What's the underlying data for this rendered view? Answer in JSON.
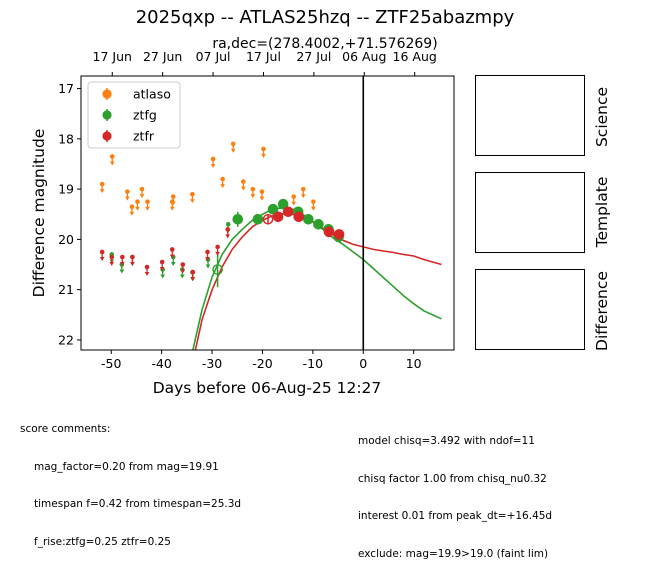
{
  "title": "2025qxp -- ATLAS25hzq -- ZTF25abazmpy",
  "chart_data": {
    "type": "scatter",
    "subtitle": "ra,dec=(278.4002,+71.576269)",
    "xlabel": "Days before 06-Aug-25 12:27",
    "ylabel": "Difference magnitude",
    "xlim": [
      -56,
      18
    ],
    "ylim": [
      22.2,
      16.75
    ],
    "y_inverted": true,
    "xticks": [
      -50,
      -40,
      -30,
      -20,
      -10,
      0,
      10
    ],
    "yticks": [
      17,
      18,
      19,
      20,
      21,
      22
    ],
    "top_axis": [
      {
        "x": -49.8,
        "label": "17 Jun"
      },
      {
        "x": -39.8,
        "label": "27 Jun"
      },
      {
        "x": -29.8,
        "label": "07 Jul"
      },
      {
        "x": -19.8,
        "label": "17 Jul"
      },
      {
        "x": -9.8,
        "label": "27 Jul"
      },
      {
        "x": 0.2,
        "label": "06 Aug"
      },
      {
        "x": 10.2,
        "label": "16 Aug"
      }
    ],
    "vline_x": 0,
    "legend_position": "upper left",
    "series": [
      {
        "name": "atlaso",
        "color": "#ff7f0e",
        "upper_limits": [
          [
            -51.8,
            18.9
          ],
          [
            -49.8,
            18.35
          ],
          [
            -46.8,
            19.05
          ],
          [
            -45.9,
            19.35
          ],
          [
            -44.8,
            19.25
          ],
          [
            -43.9,
            19.0
          ],
          [
            -42.8,
            19.25
          ],
          [
            -37.9,
            19.25
          ],
          [
            -37.7,
            19.15
          ],
          [
            -33.9,
            19.1
          ],
          [
            -29.8,
            18.4
          ],
          [
            -27.9,
            18.8
          ],
          [
            -25.8,
            18.1
          ],
          [
            -23.8,
            18.85
          ],
          [
            -21.9,
            19.0
          ],
          [
            -20.1,
            19.05
          ],
          [
            -19.8,
            18.2
          ],
          [
            -13.8,
            19.15
          ],
          [
            -11.9,
            19.0
          ],
          [
            -9.9,
            19.25
          ]
        ],
        "points": []
      },
      {
        "name": "ztfg",
        "color": "#2ca02c",
        "upper_limits": [
          [
            -49.9,
            20.3
          ],
          [
            -47.9,
            20.5
          ],
          [
            -45.8,
            20.35
          ],
          [
            -39.8,
            20.6
          ],
          [
            -37.7,
            20.35
          ],
          [
            -35.9,
            20.6
          ],
          [
            -33.9,
            20.65
          ],
          [
            -30.8,
            20.4
          ],
          [
            -26.8,
            19.7
          ]
        ],
        "points": [
          [
            -28.9,
            20.6,
            0.35
          ],
          [
            -24.9,
            19.6,
            0.15
          ],
          [
            -20.9,
            19.6,
            0.1
          ],
          [
            -17.9,
            19.4,
            0.1
          ],
          [
            -15.9,
            19.3,
            0.1
          ],
          [
            -12.9,
            19.45,
            0.1
          ],
          [
            -10.9,
            19.6,
            0.1
          ],
          [
            -8.9,
            19.7,
            0.1
          ],
          [
            -6.9,
            19.8,
            0.1
          ],
          [
            -4.9,
            19.95,
            0.1
          ]
        ],
        "open_points": [
          [
            -28.9,
            20.6
          ]
        ],
        "model": [
          [
            -33.8,
            22.2
          ],
          [
            -32,
            21.4
          ],
          [
            -30,
            20.75
          ],
          [
            -28,
            20.3
          ],
          [
            -26,
            20.0
          ],
          [
            -24,
            19.8
          ],
          [
            -22,
            19.62
          ],
          [
            -20,
            19.5
          ],
          [
            -18,
            19.4
          ],
          [
            -16,
            19.37
          ],
          [
            -14,
            19.4
          ],
          [
            -12,
            19.5
          ],
          [
            -10,
            19.65
          ],
          [
            -8,
            19.8
          ],
          [
            -6,
            19.97
          ],
          [
            -4,
            20.1
          ],
          [
            -2,
            20.25
          ],
          [
            0,
            20.4
          ],
          [
            2,
            20.58
          ],
          [
            4,
            20.76
          ],
          [
            6,
            20.94
          ],
          [
            8,
            21.12
          ],
          [
            10,
            21.28
          ],
          [
            12,
            21.42
          ],
          [
            15.5,
            21.58
          ]
        ]
      },
      {
        "name": "ztfr",
        "color": "#d62728",
        "upper_limits": [
          [
            -51.8,
            20.25
          ],
          [
            -49.9,
            20.35
          ],
          [
            -47.8,
            20.35
          ],
          [
            -45.8,
            20.35
          ],
          [
            -42.9,
            20.55
          ],
          [
            -39.9,
            20.45
          ],
          [
            -37.9,
            20.2
          ],
          [
            -35.8,
            20.5
          ],
          [
            -33.8,
            20.65
          ],
          [
            -30.9,
            20.25
          ],
          [
            -28.9,
            20.15
          ],
          [
            -26.9,
            19.8
          ]
        ],
        "points": [
          [
            -18.9,
            19.6,
            0.1
          ],
          [
            -16.9,
            19.55,
            0.1
          ],
          [
            -14.9,
            19.45,
            0.1
          ],
          [
            -12.8,
            19.55,
            0.1
          ],
          [
            -6.8,
            19.85,
            0.1
          ],
          [
            -4.8,
            19.9,
            0.1
          ]
        ],
        "open_points": [
          [
            -18.9,
            19.6
          ]
        ],
        "model": [
          [
            -33.3,
            22.2
          ],
          [
            -32,
            21.6
          ],
          [
            -30,
            21.0
          ],
          [
            -28,
            20.55
          ],
          [
            -26,
            20.2
          ],
          [
            -24,
            19.95
          ],
          [
            -22,
            19.75
          ],
          [
            -20,
            19.62
          ],
          [
            -18,
            19.53
          ],
          [
            -16,
            19.49
          ],
          [
            -14,
            19.5
          ],
          [
            -12,
            19.55
          ],
          [
            -10,
            19.65
          ],
          [
            -8,
            19.78
          ],
          [
            -6,
            19.9
          ],
          [
            -4,
            20.02
          ],
          [
            -2,
            20.1
          ],
          [
            0,
            20.15
          ],
          [
            2,
            20.2
          ],
          [
            4,
            20.23
          ],
          [
            6,
            20.26
          ],
          [
            8,
            20.3
          ],
          [
            10,
            20.33
          ],
          [
            12,
            20.4
          ],
          [
            15.5,
            20.5
          ]
        ]
      }
    ]
  },
  "side_panels": [
    "Science",
    "Template",
    "Difference"
  ],
  "comments": {
    "left_header": "score comments:",
    "left": [
      "mag_factor=0.20 from mag=19.91",
      "timespan f=0.42 from timespan=25.3d",
      "f_rise:ztfg=0.25 ztfr=0.25"
    ],
    "right": [
      "model chisq=3.492 with ndof=11",
      "chisq factor 1.00 from chisq_nu0.32",
      "interest 0.01 from peak_dt=+16.45d",
      "exclude: mag=19.9>19.0 (faint lim)"
    ]
  }
}
